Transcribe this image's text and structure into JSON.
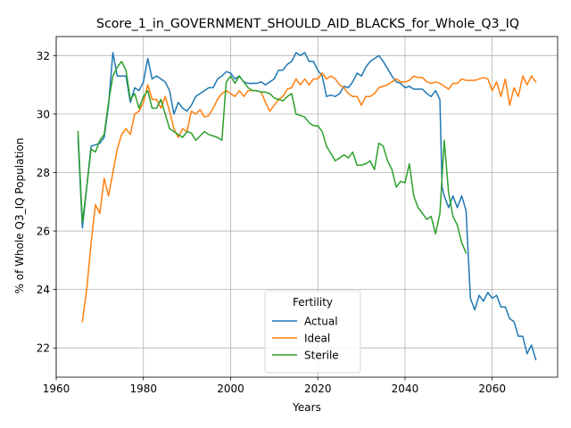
{
  "chart_data": {
    "type": "line",
    "title": "Score_1_in_GOVERNMENT_SHOULD_AID_BLACKS_for_Whole_Q3_IQ",
    "xlabel": "Years",
    "ylabel": "% of Whole Q3_IQ Population",
    "xlim": [
      1960,
      2075
    ],
    "ylim": [
      21.0,
      32.65
    ],
    "xticks": [
      1960,
      1980,
      2000,
      2020,
      2040,
      2060
    ],
    "yticks": [
      22,
      24,
      26,
      28,
      30,
      32
    ],
    "grid": true,
    "legend": {
      "title": "Fertility",
      "placement": "lower-center"
    },
    "series": [
      {
        "name": "Actual",
        "color": "#1f77b4",
        "points": [
          [
            1965,
            29.2
          ],
          [
            1966,
            26.1
          ],
          [
            1967,
            27.5
          ],
          [
            1968,
            28.9
          ],
          [
            1970,
            29.0
          ],
          [
            1971,
            29.2
          ],
          [
            1972,
            30.3
          ],
          [
            1973,
            32.1
          ],
          [
            1974,
            31.3
          ],
          [
            1976,
            31.3
          ],
          [
            1977,
            30.4
          ],
          [
            1978,
            30.9
          ],
          [
            1979,
            30.8
          ],
          [
            1980,
            31.1
          ],
          [
            1981,
            31.9
          ],
          [
            1982,
            31.2
          ],
          [
            1983,
            31.3
          ],
          [
            1984,
            31.2
          ],
          [
            1985,
            31.1
          ],
          [
            1986,
            30.8
          ],
          [
            1987,
            30.0
          ],
          [
            1988,
            30.4
          ],
          [
            1989,
            30.2
          ],
          [
            1990,
            30.1
          ],
          [
            1991,
            30.3
          ],
          [
            1992,
            30.6
          ],
          [
            1994,
            30.8
          ],
          [
            1995,
            30.9
          ],
          [
            1996,
            30.9
          ],
          [
            1997,
            31.2
          ],
          [
            1998,
            31.3
          ],
          [
            1999,
            31.45
          ],
          [
            2000,
            31.4
          ],
          [
            2001,
            31.2
          ],
          [
            2002,
            31.3
          ],
          [
            2003,
            31.1
          ],
          [
            2004,
            31.05
          ],
          [
            2005,
            31.05
          ],
          [
            2006,
            31.05
          ],
          [
            2007,
            31.1
          ],
          [
            2008,
            31.0
          ],
          [
            2009,
            31.1
          ],
          [
            2010,
            31.2
          ],
          [
            2011,
            31.5
          ],
          [
            2012,
            31.5
          ],
          [
            2013,
            31.7
          ],
          [
            2014,
            31.8
          ],
          [
            2015,
            32.1
          ],
          [
            2016,
            32.0
          ],
          [
            2017,
            32.1
          ],
          [
            2018,
            31.8
          ],
          [
            2019,
            31.8
          ],
          [
            2020,
            31.5
          ],
          [
            2021,
            31.3
          ],
          [
            2022,
            30.6
          ],
          [
            2023,
            30.65
          ],
          [
            2024,
            30.6
          ],
          [
            2025,
            30.7
          ],
          [
            2026,
            30.95
          ],
          [
            2027,
            30.9
          ],
          [
            2028,
            31.1
          ],
          [
            2029,
            31.4
          ],
          [
            2030,
            31.3
          ],
          [
            2031,
            31.6
          ],
          [
            2032,
            31.8
          ],
          [
            2033,
            31.9
          ],
          [
            2034,
            32.0
          ],
          [
            2035,
            31.8
          ],
          [
            2036,
            31.55
          ],
          [
            2037,
            31.3
          ],
          [
            2038,
            31.1
          ],
          [
            2039,
            31.05
          ],
          [
            2040,
            30.9
          ],
          [
            2041,
            30.95
          ],
          [
            2042,
            30.85
          ],
          [
            2043,
            30.85
          ],
          [
            2044,
            30.85
          ],
          [
            2045,
            30.7
          ],
          [
            2046,
            30.6
          ],
          [
            2047,
            30.8
          ],
          [
            2048,
            30.5
          ],
          [
            2048.5,
            27.5
          ],
          [
            2049,
            27.2
          ],
          [
            2050,
            26.8
          ],
          [
            2051,
            27.2
          ],
          [
            2052,
            26.8
          ],
          [
            2053,
            27.2
          ],
          [
            2054,
            26.7
          ],
          [
            2055,
            23.7
          ],
          [
            2056,
            23.3
          ],
          [
            2057,
            23.8
          ],
          [
            2058,
            23.6
          ],
          [
            2059,
            23.9
          ],
          [
            2060,
            23.7
          ],
          [
            2061,
            23.8
          ],
          [
            2062,
            23.4
          ],
          [
            2063,
            23.4
          ],
          [
            2064,
            23.0
          ],
          [
            2065,
            22.9
          ],
          [
            2066,
            22.4
          ],
          [
            2067,
            22.4
          ],
          [
            2068,
            21.8
          ],
          [
            2069,
            22.1
          ],
          [
            2070,
            21.6
          ]
        ]
      },
      {
        "name": "Ideal",
        "color": "#ff7f0e",
        "points": [
          [
            1966,
            22.9
          ],
          [
            1967,
            24.0
          ],
          [
            1968,
            25.6
          ],
          [
            1969,
            26.9
          ],
          [
            1970,
            26.6
          ],
          [
            1971,
            27.8
          ],
          [
            1972,
            27.2
          ],
          [
            1973,
            28.0
          ],
          [
            1974,
            28.8
          ],
          [
            1975,
            29.3
          ],
          [
            1976,
            29.5
          ],
          [
            1977,
            29.3
          ],
          [
            1978,
            30.0
          ],
          [
            1979,
            30.1
          ],
          [
            1980,
            30.4
          ],
          [
            1981,
            31.0
          ],
          [
            1982,
            30.5
          ],
          [
            1983,
            30.5
          ],
          [
            1984,
            30.2
          ],
          [
            1985,
            30.6
          ],
          [
            1986,
            30.1
          ],
          [
            1987,
            29.5
          ],
          [
            1988,
            29.2
          ],
          [
            1989,
            29.5
          ],
          [
            1990,
            29.4
          ],
          [
            1991,
            30.1
          ],
          [
            1992,
            30.0
          ],
          [
            1993,
            30.15
          ],
          [
            1994,
            29.9
          ],
          [
            1995,
            29.95
          ],
          [
            1996,
            30.2
          ],
          [
            1997,
            30.5
          ],
          [
            1998,
            30.7
          ],
          [
            1999,
            30.8
          ],
          [
            2000,
            30.7
          ],
          [
            2001,
            30.6
          ],
          [
            2002,
            30.8
          ],
          [
            2003,
            30.6
          ],
          [
            2004,
            30.8
          ],
          [
            2005,
            30.8
          ],
          [
            2006,
            30.8
          ],
          [
            2007,
            30.75
          ],
          [
            2008,
            30.4
          ],
          [
            2009,
            30.1
          ],
          [
            2010,
            30.3
          ],
          [
            2011,
            30.5
          ],
          [
            2012,
            30.6
          ],
          [
            2013,
            30.85
          ],
          [
            2014,
            30.9
          ],
          [
            2015,
            31.2
          ],
          [
            2016,
            31.0
          ],
          [
            2017,
            31.2
          ],
          [
            2018,
            31.0
          ],
          [
            2019,
            31.2
          ],
          [
            2020,
            31.2
          ],
          [
            2021,
            31.4
          ],
          [
            2022,
            31.2
          ],
          [
            2023,
            31.3
          ],
          [
            2024,
            31.2
          ],
          [
            2025,
            31.0
          ],
          [
            2026,
            30.9
          ],
          [
            2027,
            30.7
          ],
          [
            2028,
            30.6
          ],
          [
            2029,
            30.6
          ],
          [
            2030,
            30.3
          ],
          [
            2031,
            30.6
          ],
          [
            2032,
            30.6
          ],
          [
            2033,
            30.7
          ],
          [
            2034,
            30.9
          ],
          [
            2035,
            30.95
          ],
          [
            2036,
            31.0
          ],
          [
            2037,
            31.1
          ],
          [
            2038,
            31.2
          ],
          [
            2039,
            31.1
          ],
          [
            2040,
            31.1
          ],
          [
            2041,
            31.15
          ],
          [
            2042,
            31.3
          ],
          [
            2043,
            31.25
          ],
          [
            2044,
            31.25
          ],
          [
            2045,
            31.1
          ],
          [
            2046,
            31.05
          ],
          [
            2047,
            31.1
          ],
          [
            2048,
            31.05
          ],
          [
            2049,
            30.95
          ],
          [
            2050,
            30.85
          ],
          [
            2051,
            31.05
          ],
          [
            2052,
            31.05
          ],
          [
            2053,
            31.2
          ],
          [
            2054,
            31.15
          ],
          [
            2055,
            31.15
          ],
          [
            2056,
            31.15
          ],
          [
            2057,
            31.2
          ],
          [
            2058,
            31.25
          ],
          [
            2059,
            31.2
          ],
          [
            2060,
            30.8
          ],
          [
            2061,
            31.1
          ],
          [
            2062,
            30.6
          ],
          [
            2063,
            31.2
          ],
          [
            2064,
            30.3
          ],
          [
            2065,
            30.9
          ],
          [
            2066,
            30.6
          ],
          [
            2067,
            31.3
          ],
          [
            2068,
            31.0
          ],
          [
            2069,
            31.3
          ],
          [
            2070,
            31.1
          ]
        ]
      },
      {
        "name": "Sterile",
        "color": "#2ca02c",
        "points": [
          [
            1965,
            29.4
          ],
          [
            1966,
            26.3
          ],
          [
            1967,
            27.5
          ],
          [
            1968,
            28.8
          ],
          [
            1969,
            28.7
          ],
          [
            1970,
            29.1
          ],
          [
            1971,
            29.3
          ],
          [
            1972,
            30.4
          ],
          [
            1973,
            31.3
          ],
          [
            1974,
            31.6
          ],
          [
            1975,
            31.8
          ],
          [
            1976,
            31.5
          ],
          [
            1977,
            30.5
          ],
          [
            1978,
            30.7
          ],
          [
            1979,
            30.2
          ],
          [
            1980,
            30.6
          ],
          [
            1981,
            30.8
          ],
          [
            1982,
            30.2
          ],
          [
            1983,
            30.2
          ],
          [
            1984,
            30.5
          ],
          [
            1985,
            30.0
          ],
          [
            1986,
            29.5
          ],
          [
            1987,
            29.4
          ],
          [
            1988,
            29.3
          ],
          [
            1989,
            29.2
          ],
          [
            1990,
            29.4
          ],
          [
            1991,
            29.35
          ],
          [
            1992,
            29.1
          ],
          [
            1993,
            29.25
          ],
          [
            1994,
            29.4
          ],
          [
            1995,
            29.3
          ],
          [
            1996,
            29.25
          ],
          [
            1997,
            29.2
          ],
          [
            1998,
            29.1
          ],
          [
            1999,
            31.1
          ],
          [
            2000,
            31.3
          ],
          [
            2001,
            31.05
          ],
          [
            2002,
            31.3
          ],
          [
            2003,
            31.1
          ],
          [
            2004,
            30.9
          ],
          [
            2005,
            30.8
          ],
          [
            2006,
            30.8
          ],
          [
            2007,
            30.75
          ],
          [
            2008,
            30.75
          ],
          [
            2009,
            30.7
          ],
          [
            2010,
            30.55
          ],
          [
            2011,
            30.5
          ],
          [
            2012,
            30.45
          ],
          [
            2013,
            30.6
          ],
          [
            2014,
            30.7
          ],
          [
            2015,
            30.0
          ],
          [
            2016,
            29.95
          ],
          [
            2017,
            29.9
          ],
          [
            2018,
            29.7
          ],
          [
            2019,
            29.6
          ],
          [
            2020,
            29.6
          ],
          [
            2021,
            29.4
          ],
          [
            2022,
            28.9
          ],
          [
            2023,
            28.65
          ],
          [
            2024,
            28.4
          ],
          [
            2025,
            28.5
          ],
          [
            2026,
            28.6
          ],
          [
            2027,
            28.5
          ],
          [
            2028,
            28.7
          ],
          [
            2029,
            28.25
          ],
          [
            2030,
            28.25
          ],
          [
            2031,
            28.3
          ],
          [
            2032,
            28.4
          ],
          [
            2033,
            28.1
          ],
          [
            2034,
            29.0
          ],
          [
            2035,
            28.9
          ],
          [
            2036,
            28.4
          ],
          [
            2037,
            28.1
          ],
          [
            2038,
            27.5
          ],
          [
            2039,
            27.7
          ],
          [
            2040,
            27.65
          ],
          [
            2041,
            28.3
          ],
          [
            2042,
            27.2
          ],
          [
            2043,
            26.8
          ],
          [
            2044,
            26.6
          ],
          [
            2045,
            26.4
          ],
          [
            2046,
            26.5
          ],
          [
            2047,
            25.9
          ],
          [
            2048,
            26.6
          ],
          [
            2049,
            29.1
          ],
          [
            2050,
            27.3
          ],
          [
            2051,
            26.5
          ],
          [
            2052,
            26.2
          ],
          [
            2053,
            25.6
          ],
          [
            2054,
            25.25
          ]
        ]
      }
    ]
  }
}
